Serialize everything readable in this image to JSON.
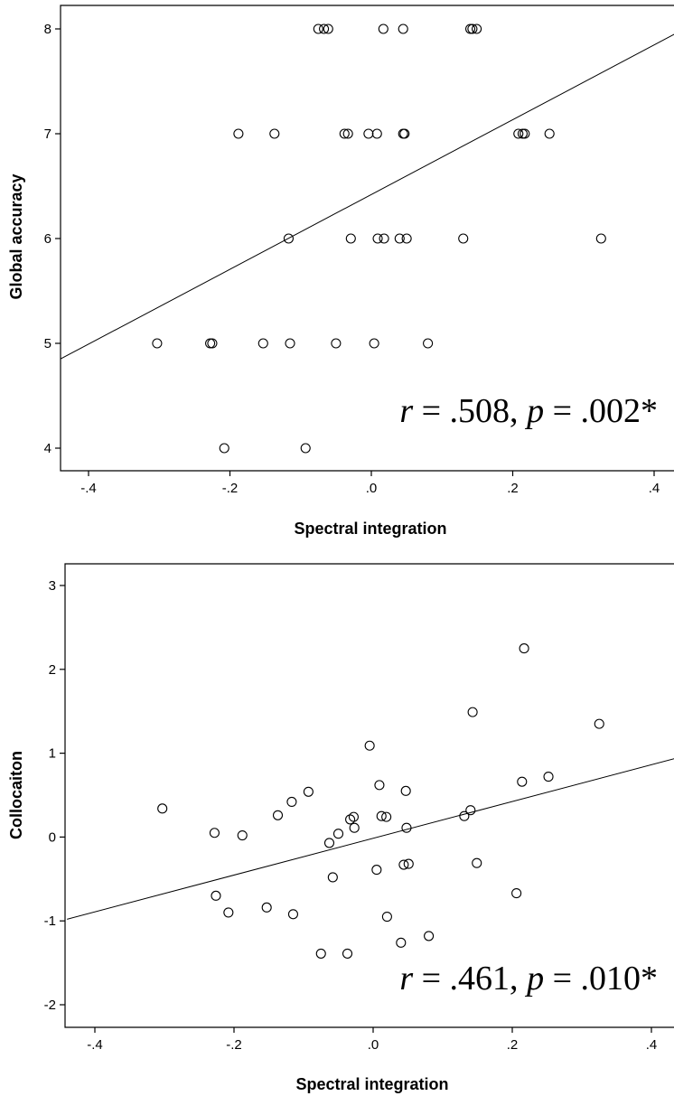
{
  "chart_data": [
    {
      "type": "scatter",
      "title": "",
      "xlabel": "Spectral integration",
      "ylabel": "Global accuracy",
      "xlim": [
        -0.44,
        0.44
      ],
      "ylim": [
        3.8,
        8.2
      ],
      "xticks": [
        -0.4,
        -0.2,
        0.0,
        0.2,
        0.4
      ],
      "xtick_labels": [
        "-.4",
        "-.2",
        ".0",
        ".2",
        ".4"
      ],
      "yticks": [
        4,
        5,
        6,
        7,
        8
      ],
      "ytick_labels": [
        "4",
        "5",
        "6",
        "7",
        "8"
      ],
      "grid": false,
      "fit_line": {
        "x": [
          -0.44,
          0.44
        ],
        "y": [
          4.85,
          7.99
        ]
      },
      "annotation": {
        "r_label": "r",
        "r_text": " = .508, ",
        "p_label": "p",
        "p_text": " = .002*"
      },
      "points": [
        {
          "x": -0.075,
          "y": 8
        },
        {
          "x": -0.067,
          "y": 8
        },
        {
          "x": -0.061,
          "y": 8
        },
        {
          "x": 0.017,
          "y": 8
        },
        {
          "x": 0.045,
          "y": 8
        },
        {
          "x": 0.14,
          "y": 8
        },
        {
          "x": 0.143,
          "y": 8
        },
        {
          "x": 0.149,
          "y": 8
        },
        {
          "x": -0.188,
          "y": 7
        },
        {
          "x": -0.137,
          "y": 7
        },
        {
          "x": -0.038,
          "y": 7
        },
        {
          "x": -0.033,
          "y": 7
        },
        {
          "x": -0.004,
          "y": 7
        },
        {
          "x": 0.008,
          "y": 7
        },
        {
          "x": 0.045,
          "y": 7
        },
        {
          "x": 0.047,
          "y": 7
        },
        {
          "x": 0.208,
          "y": 7
        },
        {
          "x": 0.214,
          "y": 7
        },
        {
          "x": 0.217,
          "y": 7
        },
        {
          "x": 0.252,
          "y": 7
        },
        {
          "x": -0.117,
          "y": 6
        },
        {
          "x": -0.029,
          "y": 6
        },
        {
          "x": 0.009,
          "y": 6
        },
        {
          "x": 0.018,
          "y": 6
        },
        {
          "x": 0.04,
          "y": 6
        },
        {
          "x": 0.05,
          "y": 6
        },
        {
          "x": 0.13,
          "y": 6
        },
        {
          "x": 0.325,
          "y": 6
        },
        {
          "x": -0.303,
          "y": 5
        },
        {
          "x": -0.228,
          "y": 5
        },
        {
          "x": -0.225,
          "y": 5
        },
        {
          "x": -0.153,
          "y": 5
        },
        {
          "x": -0.115,
          "y": 5
        },
        {
          "x": -0.05,
          "y": 5
        },
        {
          "x": 0.004,
          "y": 5
        },
        {
          "x": 0.08,
          "y": 5
        },
        {
          "x": -0.208,
          "y": 4
        },
        {
          "x": -0.093,
          "y": 4
        }
      ]
    },
    {
      "type": "scatter",
      "title": "",
      "xlabel": "Spectral integration",
      "ylabel": "Collocaiton",
      "xlim": [
        -0.44,
        0.44
      ],
      "ylim": [
        -2.2,
        3.2
      ],
      "xticks": [
        -0.4,
        -0.2,
        0.0,
        0.2,
        0.4
      ],
      "xtick_labels": [
        "-.4",
        "-.2",
        ".0",
        ".2",
        ".4"
      ],
      "yticks": [
        -2,
        -1,
        0,
        1,
        2,
        3
      ],
      "ytick_labels": [
        "-2",
        "-1",
        "0",
        "1",
        "2",
        "3"
      ],
      "grid": false,
      "fit_line": {
        "x": [
          -0.44,
          0.44
        ],
        "y": [
          -0.98,
          0.95
        ]
      },
      "annotation": {
        "r_label": "r",
        "r_text": " = .461, ",
        "p_label": "p",
        "p_text": " = .010*"
      },
      "points": [
        {
          "x": -0.303,
          "y": 0.34
        },
        {
          "x": -0.228,
          "y": 0.05
        },
        {
          "x": -0.226,
          "y": -0.7
        },
        {
          "x": -0.208,
          "y": -0.9
        },
        {
          "x": -0.188,
          "y": 0.02
        },
        {
          "x": -0.153,
          "y": -0.84
        },
        {
          "x": -0.137,
          "y": 0.26
        },
        {
          "x": -0.117,
          "y": 0.42
        },
        {
          "x": -0.115,
          "y": -0.92
        },
        {
          "x": -0.093,
          "y": 0.54
        },
        {
          "x": -0.075,
          "y": -1.39
        },
        {
          "x": -0.063,
          "y": -0.07
        },
        {
          "x": -0.058,
          "y": -0.48
        },
        {
          "x": -0.05,
          "y": 0.04
        },
        {
          "x": -0.037,
          "y": -1.39
        },
        {
          "x": -0.033,
          "y": 0.21
        },
        {
          "x": -0.028,
          "y": 0.24
        },
        {
          "x": -0.027,
          "y": 0.11
        },
        {
          "x": -0.005,
          "y": 1.09
        },
        {
          "x": 0.005,
          "y": -0.39
        },
        {
          "x": 0.009,
          "y": 0.62
        },
        {
          "x": 0.012,
          "y": 0.25
        },
        {
          "x": 0.019,
          "y": 0.24
        },
        {
          "x": 0.02,
          "y": -0.95
        },
        {
          "x": 0.04,
          "y": -1.26
        },
        {
          "x": 0.044,
          "y": -0.33
        },
        {
          "x": 0.047,
          "y": 0.55
        },
        {
          "x": 0.048,
          "y": 0.11
        },
        {
          "x": 0.051,
          "y": -0.32
        },
        {
          "x": 0.08,
          "y": -1.18
        },
        {
          "x": 0.131,
          "y": 0.25
        },
        {
          "x": 0.14,
          "y": 0.32
        },
        {
          "x": 0.143,
          "y": 1.49
        },
        {
          "x": 0.149,
          "y": -0.31
        },
        {
          "x": 0.206,
          "y": -0.67
        },
        {
          "x": 0.214,
          "y": 0.66
        },
        {
          "x": 0.217,
          "y": 2.25
        },
        {
          "x": 0.252,
          "y": 0.72
        },
        {
          "x": 0.325,
          "y": 1.35
        }
      ]
    }
  ]
}
